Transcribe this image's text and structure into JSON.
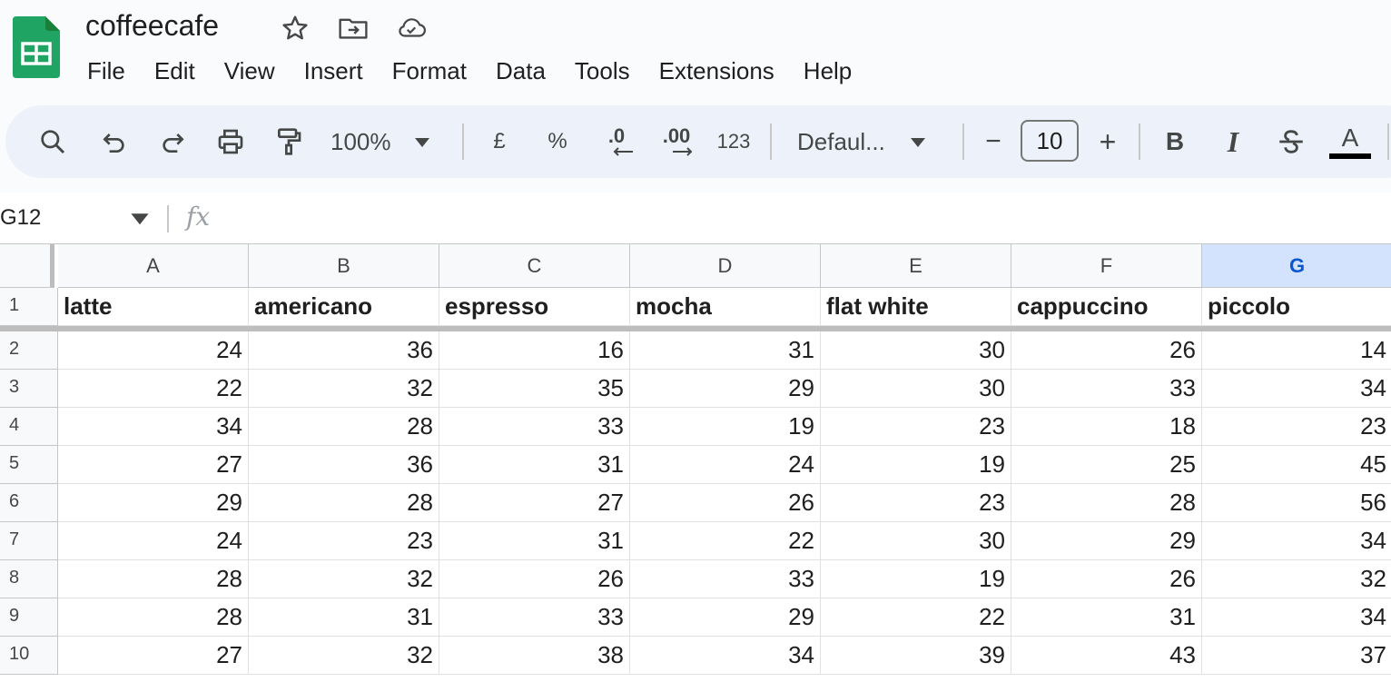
{
  "app": {
    "doc_title": "coffeecafe",
    "menu": [
      "File",
      "Edit",
      "View",
      "Insert",
      "Format",
      "Data",
      "Tools",
      "Extensions",
      "Help"
    ]
  },
  "toolbar": {
    "zoom": "100%",
    "currency": "£",
    "percent": "%",
    "decrease_decimal": ".0",
    "increase_decimal": ".00",
    "number_format": "123",
    "font": "Defaul...",
    "font_size": "10",
    "minus": "−",
    "plus": "+",
    "bold": "B",
    "italic": "I",
    "text_color": "A"
  },
  "formula_bar": {
    "name_box": "G12",
    "fx": "fx",
    "value": ""
  },
  "sheet": {
    "selected_column": "G",
    "columns": [
      "A",
      "B",
      "C",
      "D",
      "E",
      "F",
      "G"
    ],
    "row_numbers": [
      "1",
      "2",
      "3",
      "4",
      "5",
      "6",
      "7",
      "8",
      "9",
      "10"
    ],
    "header_row": [
      "latte",
      "americano",
      "espresso",
      "mocha",
      "flat white",
      "cappuccino",
      "piccolo"
    ],
    "rows": [
      [
        24,
        36,
        16,
        31,
        30,
        26,
        14
      ],
      [
        22,
        32,
        35,
        29,
        30,
        33,
        34
      ],
      [
        34,
        28,
        33,
        19,
        23,
        18,
        23
      ],
      [
        27,
        36,
        31,
        24,
        19,
        25,
        45
      ],
      [
        29,
        28,
        27,
        26,
        23,
        28,
        56
      ],
      [
        24,
        23,
        31,
        22,
        30,
        29,
        34
      ],
      [
        28,
        32,
        26,
        33,
        19,
        26,
        32
      ],
      [
        28,
        31,
        33,
        29,
        22,
        31,
        34
      ],
      [
        27,
        32,
        38,
        34,
        39,
        43,
        37
      ]
    ]
  },
  "colors": {
    "sheets_green": "#1fa463",
    "selected_header": "#d3e3fd",
    "toolbar_bg": "#edf2fa"
  }
}
